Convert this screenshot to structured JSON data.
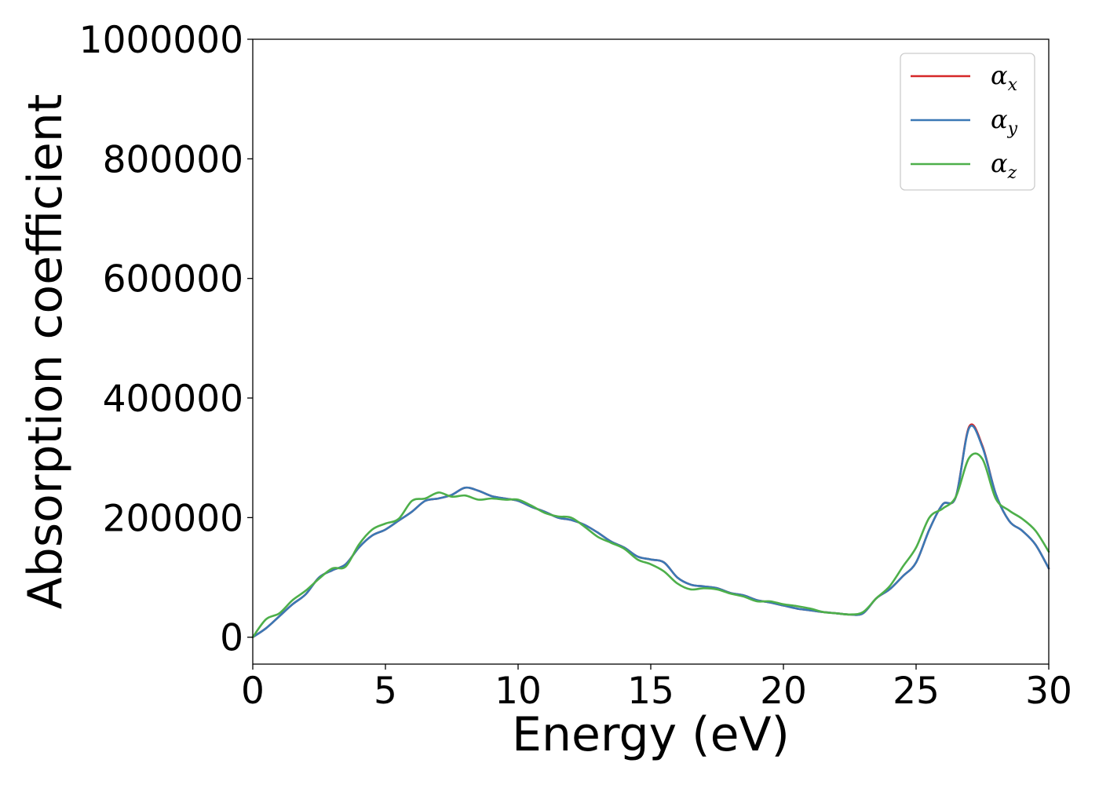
{
  "chart_data": {
    "type": "line",
    "xlabel": "Energy (eV)",
    "ylabel": "Absorption coefficient",
    "xlim": [
      0,
      30
    ],
    "ylim": [
      -45000,
      1000000
    ],
    "xticks": [
      0,
      5,
      10,
      15,
      20,
      25,
      30
    ],
    "yticks": [
      0,
      200000,
      400000,
      600000,
      800000,
      1000000
    ],
    "grid": false,
    "legend_position": "top-right",
    "x": [
      0,
      0.5,
      1,
      1.5,
      2,
      2.5,
      3,
      3.5,
      4,
      4.5,
      5,
      5.5,
      6,
      6.5,
      7,
      7.5,
      8,
      8.5,
      9,
      9.5,
      10,
      10.5,
      11,
      11.5,
      12,
      12.5,
      13,
      13.5,
      14,
      14.5,
      15,
      15.5,
      16,
      16.5,
      17,
      17.5,
      18,
      18.5,
      19,
      19.5,
      20,
      20.5,
      21,
      21.5,
      22,
      22.5,
      23,
      23.5,
      24,
      24.5,
      25,
      25.5,
      26,
      26.5,
      27,
      27.5,
      28,
      28.5,
      29,
      29.5,
      30
    ],
    "series": [
      {
        "name": "α_x",
        "legend_symbol": "α",
        "legend_subscript": "x",
        "color": "#d62728",
        "values": [
          0,
          15000,
          35000,
          55000,
          72000,
          100000,
          112000,
          122000,
          150000,
          170000,
          180000,
          195000,
          210000,
          228000,
          232000,
          238000,
          250000,
          245000,
          236000,
          232000,
          228000,
          218000,
          210000,
          200000,
          196000,
          188000,
          175000,
          160000,
          150000,
          135000,
          130000,
          125000,
          100000,
          88000,
          85000,
          82000,
          74000,
          70000,
          62000,
          58000,
          53000,
          48000,
          45000,
          42000,
          40000,
          38000,
          40000,
          65000,
          80000,
          102000,
          125000,
          180000,
          222000,
          235000,
          352000,
          320000,
          240000,
          195000,
          178000,
          155000,
          115000
        ]
      },
      {
        "name": "α_y",
        "legend_symbol": "α",
        "legend_subscript": "y",
        "color": "#3a78b5",
        "values": [
          0,
          15000,
          35000,
          55000,
          72000,
          100000,
          112000,
          122000,
          150000,
          170000,
          180000,
          195000,
          210000,
          228000,
          232000,
          238000,
          250000,
          245000,
          236000,
          232000,
          228000,
          218000,
          210000,
          200000,
          196000,
          188000,
          175000,
          160000,
          150000,
          135000,
          130000,
          125000,
          100000,
          88000,
          85000,
          82000,
          74000,
          70000,
          62000,
          58000,
          53000,
          48000,
          45000,
          42000,
          40000,
          38000,
          40000,
          65000,
          80000,
          102000,
          125000,
          180000,
          222000,
          235000,
          350000,
          318000,
          240000,
          195000,
          178000,
          155000,
          115000
        ]
      },
      {
        "name": "α_z",
        "legend_symbol": "α",
        "legend_subscript": "z",
        "color": "#4daf4a",
        "values": [
          0,
          30000,
          40000,
          62000,
          78000,
          98000,
          115000,
          118000,
          155000,
          180000,
          190000,
          198000,
          228000,
          232000,
          242000,
          235000,
          237000,
          230000,
          232000,
          230000,
          230000,
          220000,
          208000,
          202000,
          200000,
          185000,
          168000,
          158000,
          148000,
          130000,
          122000,
          110000,
          90000,
          80000,
          82000,
          80000,
          73000,
          68000,
          60000,
          60000,
          55000,
          52000,
          48000,
          42000,
          40000,
          38000,
          42000,
          65000,
          85000,
          118000,
          150000,
          200000,
          215000,
          235000,
          300000,
          298000,
          232000,
          212000,
          198000,
          178000,
          143000
        ]
      }
    ]
  }
}
